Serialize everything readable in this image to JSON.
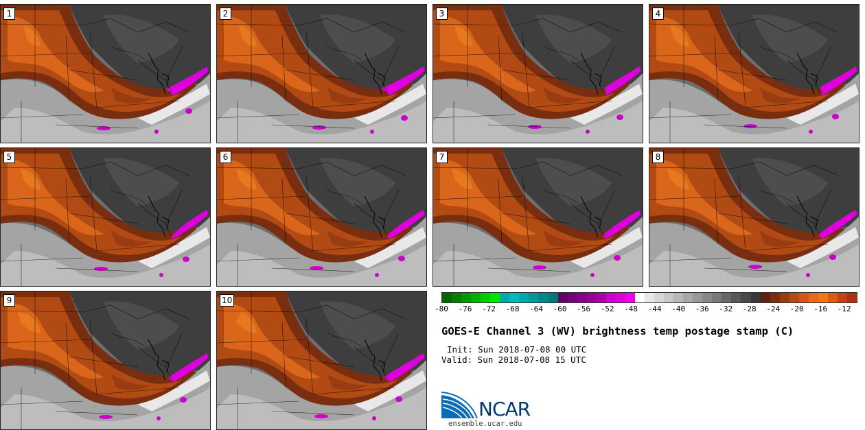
{
  "panels": [
    {
      "number": "1"
    },
    {
      "number": "2"
    },
    {
      "number": "3"
    },
    {
      "number": "4"
    },
    {
      "number": "5"
    },
    {
      "number": "6"
    },
    {
      "number": "7"
    },
    {
      "number": "8"
    },
    {
      "number": "9"
    },
    {
      "number": "10"
    }
  ],
  "colorbar": {
    "tick_labels": [
      "-80",
      "-76",
      "-72",
      "-68",
      "-64",
      "-60",
      "-56",
      "-52",
      "-48",
      "-44",
      "-40",
      "-36",
      "-32",
      "-28",
      "-24",
      "-20",
      "-16",
      "-12"
    ],
    "min": -80,
    "max": -10,
    "colors": [
      "#006600",
      "#007f00",
      "#009900",
      "#00b200",
      "#00cc00",
      "#00e500",
      "#00aaaa",
      "#00bbbb",
      "#00a8a8",
      "#009999",
      "#008888",
      "#007777",
      "#660066",
      "#770077",
      "#880088",
      "#990099",
      "#aa00aa",
      "#cc00cc",
      "#dd00dd",
      "#ee00ee",
      "#ffffff",
      "#e8e8e8",
      "#d8d8d8",
      "#c8c8c8",
      "#b8b8b8",
      "#a8a8a8",
      "#989898",
      "#888888",
      "#787878",
      "#686868",
      "#585858",
      "#484848",
      "#383838",
      "#5a2410",
      "#7a3010",
      "#9a3c12",
      "#b84814",
      "#d05816",
      "#e86a18",
      "#f07818",
      "#e05a10",
      "#c84010",
      "#b03010"
    ]
  },
  "title": "GOES-E Channel 3 (WV) brightness temp postage stamp (C)",
  "init": "Init: Sun 2018-07-08 00 UTC",
  "valid": "Valid: Sun 2018-07-08 15 UTC",
  "logo": {
    "text": "NCAR",
    "url": "ensemble.ucar.edu"
  }
}
